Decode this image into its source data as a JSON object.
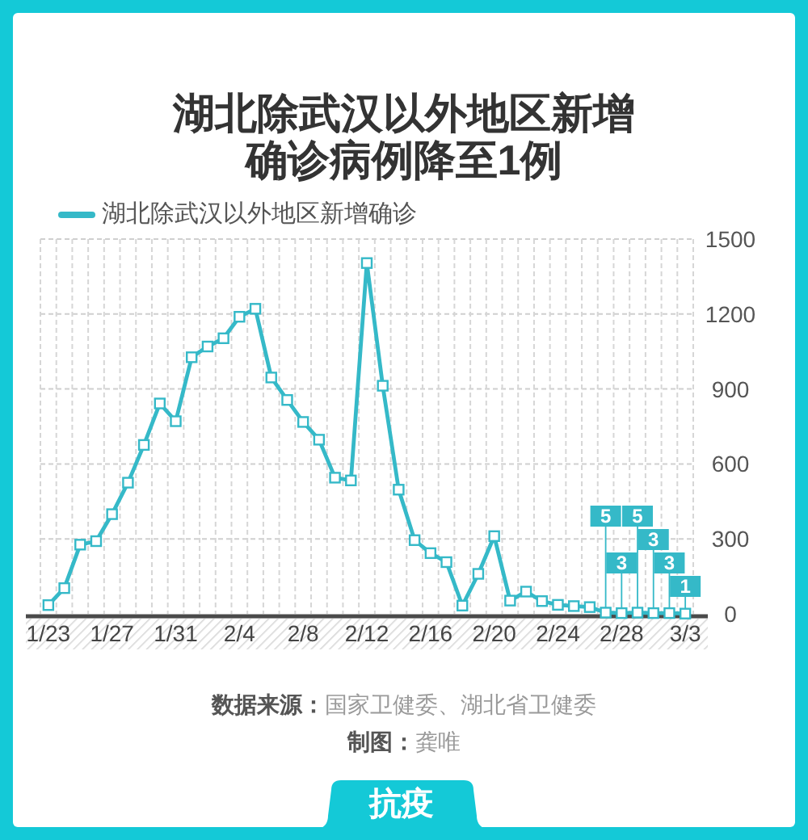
{
  "chart_data": {
    "type": "line",
    "title": "湖北除武汉以外地区新增确诊病例降至1例",
    "categories": [
      "1/23",
      null,
      null,
      null,
      "1/27",
      null,
      null,
      null,
      "1/31",
      null,
      null,
      null,
      "2/4",
      null,
      null,
      null,
      "2/8",
      null,
      null,
      null,
      "2/12",
      null,
      null,
      null,
      "2/16",
      null,
      null,
      null,
      "2/20",
      null,
      null,
      null,
      "2/24",
      null,
      null,
      null,
      "2/28",
      null,
      null,
      null,
      "3/3"
    ],
    "series": [
      {
        "name": "湖北除武汉以外地区新增确诊",
        "color": "#35b9c8",
        "values": [
          35,
          103,
          277,
          291,
          399,
          525,
          676,
          842,
          771,
          1027,
          1070,
          1103,
          1189,
          1221,
          946,
          856,
          768,
          697,
          545,
          534,
          1404,
          913,
          497,
          295,
          243,
          207,
          33,
          160,
          311,
          53,
          89,
          51,
          36,
          31,
          27,
          5,
          3,
          5,
          3,
          3,
          1
        ],
        "value_labels": [
          null,
          null,
          null,
          null,
          null,
          null,
          null,
          null,
          null,
          null,
          null,
          null,
          null,
          null,
          null,
          null,
          null,
          null,
          null,
          null,
          null,
          null,
          null,
          null,
          null,
          null,
          null,
          null,
          null,
          null,
          null,
          null,
          null,
          null,
          null,
          "5",
          "3",
          "5",
          "3",
          "3",
          "1"
        ]
      }
    ],
    "ylim": [
      0,
      1500
    ],
    "yticks": [
      0,
      300,
      600,
      900,
      1200,
      1500
    ],
    "grid": true,
    "legend": "top left",
    "marker": "square",
    "annotations": [
      "**数据来源：**国家卫健委、湖北省卫健委",
      "**制图：**龚唯",
      "抗疫"
    ]
  }
}
